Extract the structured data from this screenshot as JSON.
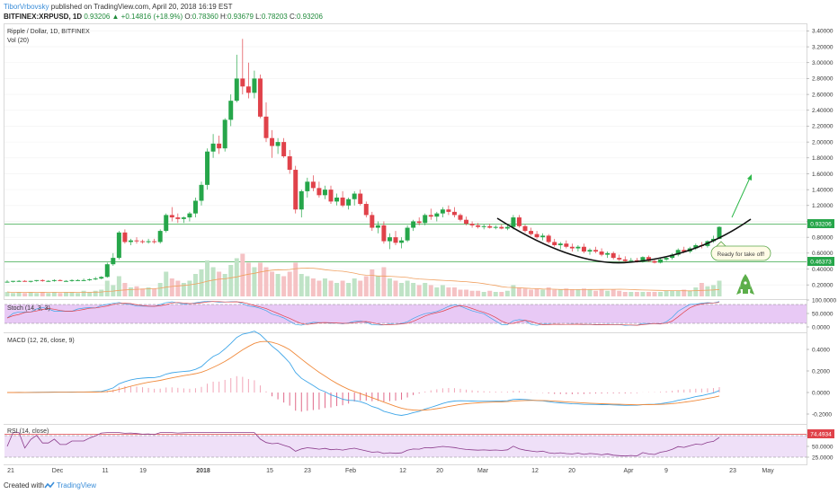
{
  "header": {
    "author": "TiborVrbovsky",
    "published_text": "published on TradingView.com, April 20, 2018 16:19 EST",
    "symbol": "BITFINEX:XRPUSD, 1D",
    "last_price": "0.93206",
    "change": "▲ +0.14816 (+18.9%)",
    "o_label": "O:",
    "o_value": "0.78360",
    "h_label": "H:",
    "h_value": "0.93679",
    "l_label": "L:",
    "l_value": "0.78203",
    "c_label": "C:",
    "c_value": "0.93206"
  },
  "panes": {
    "price_title": "Ripple / Dollar, 1D, BITFINEX",
    "vol_title": "Vol (20)",
    "stoch_title": "Stoch (14, 3, 3)",
    "macd_title": "MACD (12, 26, close, 9)",
    "rsi_title": "RSI (14, close)"
  },
  "price_axis": [
    "3.40000",
    "3.20000",
    "3.00000",
    "2.80000",
    "2.60000",
    "2.40000",
    "2.20000",
    "2.00000",
    "1.80000",
    "1.60000",
    "1.40000",
    "1.20000",
    "1.00000",
    "0.80000",
    "0.60000",
    "0.40000",
    "0.20000"
  ],
  "price_tags": {
    "last": "0.93206",
    "level": "0.46373"
  },
  "stoch_axis": [
    "100.0000",
    "50.0000",
    "0.0000"
  ],
  "macd_axis": [
    "0.4000",
    "0.2000",
    "0.0000",
    "-0.2000"
  ],
  "rsi_axis": [
    "75.0000",
    "50.0000",
    "25.0000"
  ],
  "rsi_tag": "74.4934",
  "date_labels": [
    "21",
    "Dec",
    "11",
    "19",
    "2018",
    "15",
    "23",
    "Feb",
    "12",
    "20",
    "Mar",
    "12",
    "20",
    "Apr",
    "9",
    "23",
    "May"
  ],
  "annotation": "Ready for take off!",
  "footer": {
    "created_with": "Created with",
    "brand": "TradingView"
  },
  "colors": {
    "up": "#26a64a",
    "down": "#e0424a",
    "stoch_fill": "#e8c9f5",
    "rsi_fill": "#efe0f8",
    "macd_line": "#3fa6e8",
    "signal_line": "#f08a3c",
    "rsi_line": "#8a3a8a",
    "arrow": "#2eb84a",
    "rocket": "#5cae4a"
  },
  "chart_data": {
    "type": "candlestick",
    "candles": [
      [
        0.24,
        0.26,
        0.23,
        0.24
      ],
      [
        0.24,
        0.25,
        0.23,
        0.25
      ],
      [
        0.25,
        0.26,
        0.24,
        0.25
      ],
      [
        0.25,
        0.26,
        0.24,
        0.24
      ],
      [
        0.24,
        0.25,
        0.23,
        0.25
      ],
      [
        0.25,
        0.26,
        0.24,
        0.26
      ],
      [
        0.26,
        0.27,
        0.24,
        0.25
      ],
      [
        0.25,
        0.26,
        0.24,
        0.25
      ],
      [
        0.25,
        0.27,
        0.24,
        0.26
      ],
      [
        0.26,
        0.27,
        0.25,
        0.25
      ],
      [
        0.25,
        0.26,
        0.24,
        0.25
      ],
      [
        0.25,
        0.27,
        0.24,
        0.26
      ],
      [
        0.26,
        0.27,
        0.25,
        0.26
      ],
      [
        0.26,
        0.28,
        0.25,
        0.26
      ],
      [
        0.26,
        0.28,
        0.25,
        0.27
      ],
      [
        0.27,
        0.3,
        0.26,
        0.28
      ],
      [
        0.28,
        0.31,
        0.27,
        0.3
      ],
      [
        0.3,
        0.48,
        0.29,
        0.46
      ],
      [
        0.46,
        0.6,
        0.44,
        0.54
      ],
      [
        0.54,
        0.88,
        0.52,
        0.86
      ],
      [
        0.86,
        0.9,
        0.72,
        0.74
      ],
      [
        0.74,
        0.78,
        0.7,
        0.76
      ],
      [
        0.76,
        0.8,
        0.72,
        0.75
      ],
      [
        0.75,
        0.77,
        0.72,
        0.74
      ],
      [
        0.74,
        0.78,
        0.72,
        0.75
      ],
      [
        0.75,
        0.78,
        0.72,
        0.74
      ],
      [
        0.74,
        0.9,
        0.72,
        0.88
      ],
      [
        0.88,
        1.1,
        0.86,
        1.08
      ],
      [
        1.08,
        1.18,
        1.0,
        1.05
      ],
      [
        1.05,
        1.1,
        0.98,
        1.03
      ],
      [
        1.03,
        1.06,
        0.98,
        1.05
      ],
      [
        1.05,
        1.12,
        1.0,
        1.1
      ],
      [
        1.1,
        1.3,
        1.05,
        1.26
      ],
      [
        1.26,
        1.5,
        1.2,
        1.46
      ],
      [
        1.46,
        1.92,
        1.4,
        1.88
      ],
      [
        1.88,
        2.1,
        1.8,
        1.98
      ],
      [
        1.98,
        2.08,
        1.85,
        1.92
      ],
      [
        1.92,
        2.3,
        1.88,
        2.28
      ],
      [
        2.28,
        2.6,
        2.2,
        2.52
      ],
      [
        2.52,
        3.1,
        2.5,
        2.8
      ],
      [
        2.8,
        3.3,
        2.6,
        2.7
      ],
      [
        2.7,
        3.0,
        2.55,
        2.62
      ],
      [
        2.62,
        2.9,
        2.55,
        2.8
      ],
      [
        2.8,
        2.85,
        2.3,
        2.32
      ],
      [
        2.32,
        2.5,
        2.0,
        2.05
      ],
      [
        2.05,
        2.15,
        1.8,
        1.95
      ],
      [
        1.95,
        2.05,
        1.85,
        2.0
      ],
      [
        2.0,
        2.05,
        1.8,
        1.82
      ],
      [
        1.82,
        1.9,
        1.6,
        1.65
      ],
      [
        1.65,
        1.7,
        1.1,
        1.15
      ],
      [
        1.15,
        1.4,
        1.05,
        1.38
      ],
      [
        1.38,
        1.55,
        1.3,
        1.5
      ],
      [
        1.5,
        1.58,
        1.38,
        1.42
      ],
      [
        1.42,
        1.5,
        1.3,
        1.33
      ],
      [
        1.33,
        1.45,
        1.28,
        1.4
      ],
      [
        1.4,
        1.45,
        1.22,
        1.25
      ],
      [
        1.25,
        1.35,
        1.2,
        1.3
      ],
      [
        1.3,
        1.38,
        1.18,
        1.2
      ],
      [
        1.2,
        1.3,
        1.15,
        1.28
      ],
      [
        1.28,
        1.38,
        1.2,
        1.35
      ],
      [
        1.35,
        1.4,
        1.2,
        1.22
      ],
      [
        1.22,
        1.25,
        1.05,
        1.08
      ],
      [
        1.08,
        1.12,
        0.88,
        0.92
      ],
      [
        0.92,
        1.0,
        0.85,
        0.95
      ],
      [
        0.95,
        1.0,
        0.72,
        0.75
      ],
      [
        0.75,
        0.85,
        0.65,
        0.8
      ],
      [
        0.8,
        0.88,
        0.7,
        0.73
      ],
      [
        0.73,
        0.8,
        0.66,
        0.76
      ],
      [
        0.76,
        0.95,
        0.74,
        0.92
      ],
      [
        0.92,
        1.02,
        0.88,
        1.0
      ],
      [
        1.0,
        1.05,
        0.95,
        0.98
      ],
      [
        0.98,
        1.1,
        0.95,
        1.08
      ],
      [
        1.08,
        1.16,
        1.02,
        1.06
      ],
      [
        1.06,
        1.12,
        1.0,
        1.1
      ],
      [
        1.1,
        1.18,
        1.05,
        1.15
      ],
      [
        1.15,
        1.2,
        1.08,
        1.12
      ],
      [
        1.12,
        1.18,
        1.05,
        1.08
      ],
      [
        1.08,
        1.1,
        1.0,
        1.02
      ],
      [
        1.02,
        1.06,
        0.95,
        0.97
      ],
      [
        0.97,
        1.0,
        0.92,
        0.95
      ],
      [
        0.95,
        0.98,
        0.91,
        0.93
      ],
      [
        0.93,
        0.96,
        0.9,
        0.94
      ],
      [
        0.94,
        0.97,
        0.91,
        0.92
      ],
      [
        0.92,
        0.95,
        0.9,
        0.93
      ],
      [
        0.93,
        0.96,
        0.9,
        0.91
      ],
      [
        0.91,
        0.95,
        0.89,
        0.93
      ],
      [
        0.93,
        1.08,
        0.9,
        1.05
      ],
      [
        1.05,
        1.08,
        0.92,
        0.94
      ],
      [
        0.94,
        0.96,
        0.86,
        0.88
      ],
      [
        0.88,
        0.92,
        0.82,
        0.84
      ],
      [
        0.84,
        0.88,
        0.78,
        0.8
      ],
      [
        0.8,
        0.85,
        0.76,
        0.82
      ],
      [
        0.82,
        0.84,
        0.72,
        0.74
      ],
      [
        0.74,
        0.78,
        0.68,
        0.7
      ],
      [
        0.7,
        0.74,
        0.65,
        0.72
      ],
      [
        0.72,
        0.76,
        0.66,
        0.68
      ],
      [
        0.68,
        0.72,
        0.62,
        0.66
      ],
      [
        0.66,
        0.7,
        0.62,
        0.68
      ],
      [
        0.68,
        0.72,
        0.6,
        0.62
      ],
      [
        0.62,
        0.66,
        0.58,
        0.64
      ],
      [
        0.64,
        0.68,
        0.6,
        0.62
      ],
      [
        0.62,
        0.66,
        0.56,
        0.58
      ],
      [
        0.58,
        0.62,
        0.54,
        0.6
      ],
      [
        0.6,
        0.62,
        0.52,
        0.54
      ],
      [
        0.54,
        0.58,
        0.5,
        0.52
      ],
      [
        0.52,
        0.56,
        0.48,
        0.5
      ],
      [
        0.5,
        0.54,
        0.48,
        0.51
      ],
      [
        0.51,
        0.54,
        0.48,
        0.49
      ],
      [
        0.49,
        0.56,
        0.48,
        0.55
      ],
      [
        0.55,
        0.57,
        0.49,
        0.5
      ],
      [
        0.5,
        0.52,
        0.47,
        0.48
      ],
      [
        0.48,
        0.53,
        0.47,
        0.52
      ],
      [
        0.52,
        0.56,
        0.5,
        0.54
      ],
      [
        0.54,
        0.6,
        0.52,
        0.58
      ],
      [
        0.58,
        0.66,
        0.56,
        0.64
      ],
      [
        0.64,
        0.68,
        0.6,
        0.62
      ],
      [
        0.62,
        0.68,
        0.6,
        0.66
      ],
      [
        0.66,
        0.72,
        0.64,
        0.7
      ],
      [
        0.7,
        0.74,
        0.66,
        0.69
      ],
      [
        0.69,
        0.76,
        0.67,
        0.75
      ],
      [
        0.75,
        0.82,
        0.73,
        0.78
      ],
      [
        0.78,
        0.94,
        0.78,
        0.93
      ]
    ],
    "volume": [
      4,
      3,
      4,
      3,
      4,
      3,
      4,
      3,
      4,
      3,
      4,
      4,
      3,
      5,
      4,
      5,
      6,
      14,
      10,
      18,
      12,
      8,
      9,
      7,
      8,
      7,
      12,
      22,
      16,
      14,
      12,
      14,
      20,
      24,
      32,
      26,
      22,
      20,
      28,
      34,
      38,
      30,
      26,
      30,
      26,
      22,
      20,
      18,
      22,
      30,
      20,
      18,
      16,
      14,
      16,
      14,
      12,
      14,
      12,
      16,
      14,
      18,
      24,
      18,
      26,
      16,
      14,
      12,
      14,
      12,
      10,
      12,
      10,
      8,
      10,
      8,
      8,
      6,
      6,
      5,
      5,
      4,
      5,
      4,
      4,
      5,
      10,
      8,
      7,
      6,
      7,
      6,
      8,
      6,
      6,
      7,
      6,
      6,
      7,
      6,
      5,
      6,
      5,
      6,
      5,
      4,
      4,
      4,
      4,
      4,
      4,
      4,
      5,
      5,
      5,
      6,
      5,
      8,
      12,
      9,
      10,
      14
    ],
    "price_range": [
      0.1,
      3.45
    ]
  }
}
